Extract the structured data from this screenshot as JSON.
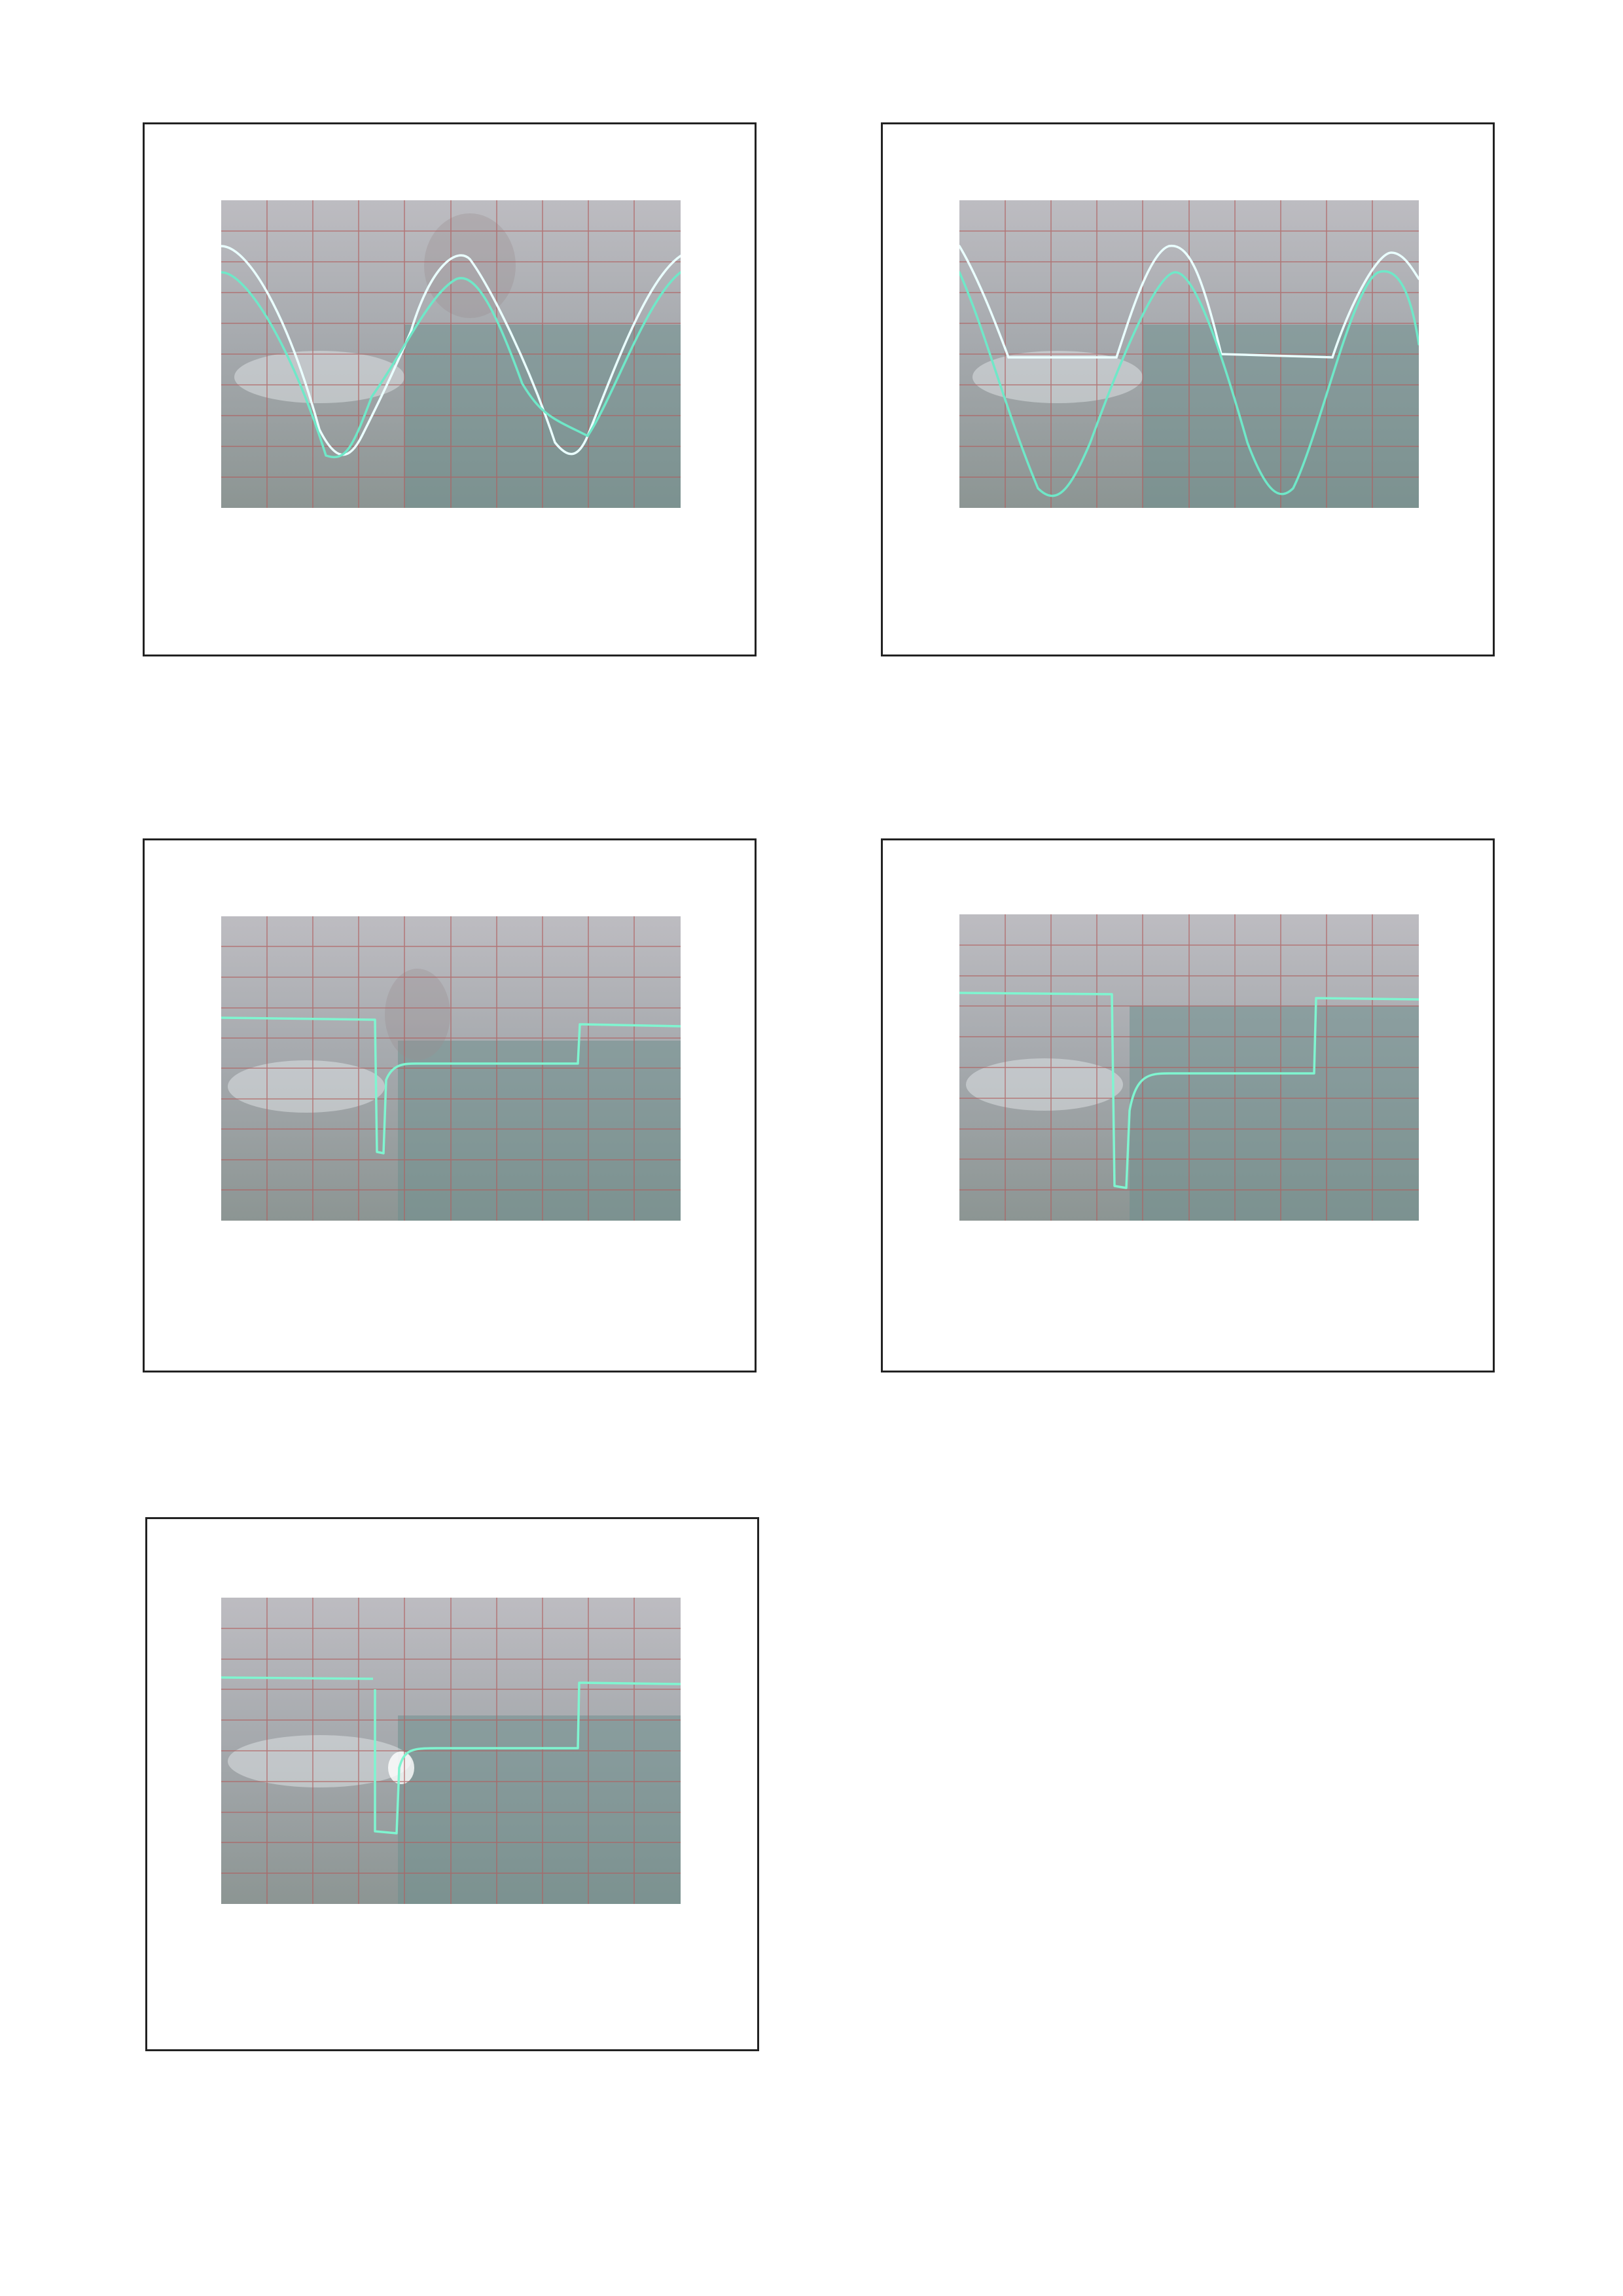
{
  "page": {
    "background": "#ffffff",
    "frame_border": "#222222"
  },
  "screen_colors": {
    "top": "#b7b5ba",
    "bottom": "#8e9898",
    "grid": "#b06060",
    "trace": "#7ff5d0"
  },
  "photos": [
    {
      "id": "photo-1",
      "waveform": "two-sine-clipped"
    },
    {
      "id": "photo-2",
      "waveform": "two-sine-flat-segments"
    },
    {
      "id": "photo-3",
      "waveform": "square-step-negative-spike"
    },
    {
      "id": "photo-4",
      "waveform": "square-step-negative-spike"
    },
    {
      "id": "photo-5",
      "waveform": "square-step-negative-spike"
    }
  ]
}
